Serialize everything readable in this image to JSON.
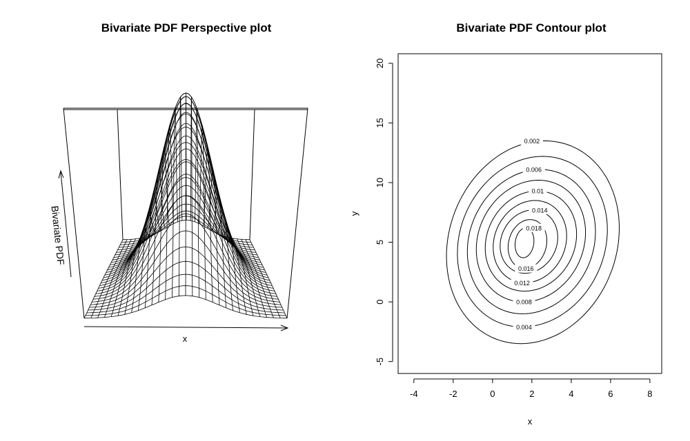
{
  "figure": {
    "persp_title": "Bivariate PDF Perspective plot",
    "contour_title": "Bivariate PDF Contour plot"
  },
  "persp": {
    "xlabel": "x",
    "zlabel": "Bivariate PDF"
  },
  "chart_data": [
    {
      "type": "surface",
      "title": "Bivariate PDF Perspective plot",
      "xlabel": "x",
      "zlabel": "Bivariate PDF"
    },
    {
      "type": "contour",
      "title": "Bivariate PDF Contour plot",
      "xlabel": "x",
      "ylabel": "y",
      "xlim": [
        -4.8,
        8.6
      ],
      "ylim": [
        -6,
        20.8
      ],
      "xticks": [
        -4,
        -2,
        0,
        2,
        4,
        6,
        8
      ],
      "yticks": [
        -5,
        0,
        5,
        10,
        15,
        20
      ],
      "center": [
        1.65,
        5.0
      ],
      "levels": [
        {
          "value": 0.002,
          "label": "0.002",
          "xmin": -2.3,
          "xmax": 6.4,
          "ymin": -3.5,
          "ymax": 13.5,
          "label_pos": [
            2.0,
            13.5
          ]
        },
        {
          "value": 0.004,
          "label": "0.004",
          "xmin": -1.75,
          "xmax": 5.8,
          "ymin": -2.1,
          "ymax": 12.2,
          "label_pos": [
            1.6,
            -2.1
          ]
        },
        {
          "value": 0.006,
          "label": "0.006",
          "xmin": -1.25,
          "xmax": 5.2,
          "ymin": -1.0,
          "ymax": 11.1,
          "label_pos": [
            2.1,
            11.1
          ]
        },
        {
          "value": 0.008,
          "label": "0.008",
          "xmin": -0.8,
          "xmax": 4.7,
          "ymin": 0.0,
          "ymax": 10.2,
          "label_pos": [
            1.6,
            0.0
          ]
        },
        {
          "value": 0.01,
          "label": "0.01",
          "xmin": -0.35,
          "xmax": 4.25,
          "ymin": 0.9,
          "ymax": 9.3,
          "label_pos": [
            2.3,
            9.3
          ]
        },
        {
          "value": 0.012,
          "label": "0.012",
          "xmin": 0.05,
          "xmax": 3.75,
          "ymin": 1.6,
          "ymax": 8.5,
          "label_pos": [
            1.5,
            1.6
          ]
        },
        {
          "value": 0.014,
          "label": "0.014",
          "xmin": 0.4,
          "xmax": 3.3,
          "ymin": 2.4,
          "ymax": 7.7,
          "label_pos": [
            2.4,
            7.7
          ]
        },
        {
          "value": 0.016,
          "label": "0.016",
          "xmin": 0.8,
          "xmax": 2.75,
          "ymin": 2.8,
          "ymax": 6.9,
          "label_pos": [
            1.7,
            2.8
          ]
        },
        {
          "value": 0.018,
          "label": "0.018",
          "xmin": 1.15,
          "xmax": 2.1,
          "ymin": 3.7,
          "ymax": 6.2,
          "label_pos": [
            2.1,
            6.2
          ]
        }
      ]
    }
  ]
}
